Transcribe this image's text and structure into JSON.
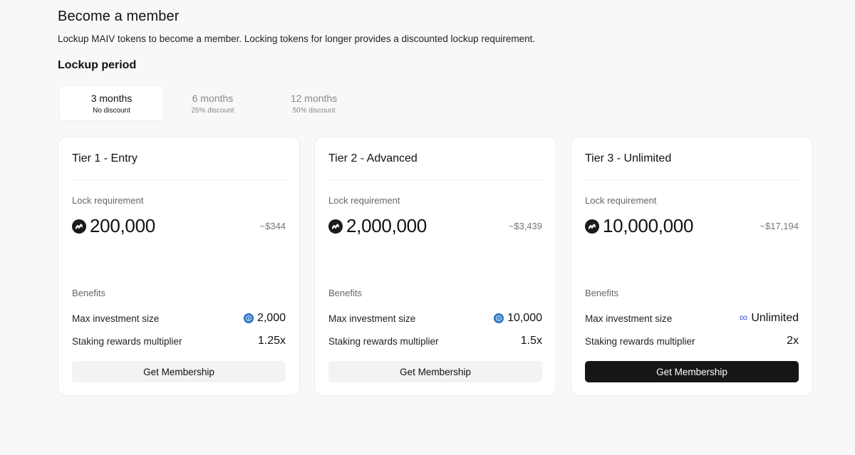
{
  "header": {
    "title": "Become a member",
    "subtitle": "Lockup MAIV tokens to become a member. Locking tokens for longer provides a discounted lockup requirement."
  },
  "lockup": {
    "title": "Lockup period",
    "selected_index": 0,
    "tabs": [
      {
        "label": "3 months",
        "discount": "No discount"
      },
      {
        "label": "6 months",
        "discount": "25% discount"
      },
      {
        "label": "12 months",
        "discount": "50% discount"
      }
    ]
  },
  "tiers": [
    {
      "title": "Tier 1 - Entry",
      "lock_label": "Lock requirement",
      "lock_amount": "200,000",
      "lock_usd": "~$344",
      "benefits_label": "Benefits",
      "max_investment_label": "Max investment size",
      "max_investment_value": "2,000",
      "max_investment_icon": "usdc-icon",
      "staking_label": "Staking rewards multiplier",
      "staking_value": "1.25x",
      "button_label": "Get Membership",
      "button_style": "light"
    },
    {
      "title": "Tier 2 - Advanced",
      "lock_label": "Lock requirement",
      "lock_amount": "2,000,000",
      "lock_usd": "~$3,439",
      "benefits_label": "Benefits",
      "max_investment_label": "Max investment size",
      "max_investment_value": "10,000",
      "max_investment_icon": "usdc-icon",
      "staking_label": "Staking rewards multiplier",
      "staking_value": "1.5x",
      "button_label": "Get Membership",
      "button_style": "light"
    },
    {
      "title": "Tier 3 - Unlimited",
      "lock_label": "Lock requirement",
      "lock_amount": "10,000,000",
      "lock_usd": "~$17,194",
      "benefits_label": "Benefits",
      "max_investment_label": "Max investment size",
      "max_investment_value": "Unlimited",
      "max_investment_icon": "infinity-icon",
      "staking_label": "Staking rewards multiplier",
      "staking_value": "2x",
      "button_label": "Get Membership",
      "button_style": "dark"
    }
  ],
  "colors": {
    "background": "#f8f8f8",
    "card": "#ffffff",
    "primary_button": "#161616",
    "usdc": "#2775ca",
    "infinity": "#4a5ad8"
  }
}
